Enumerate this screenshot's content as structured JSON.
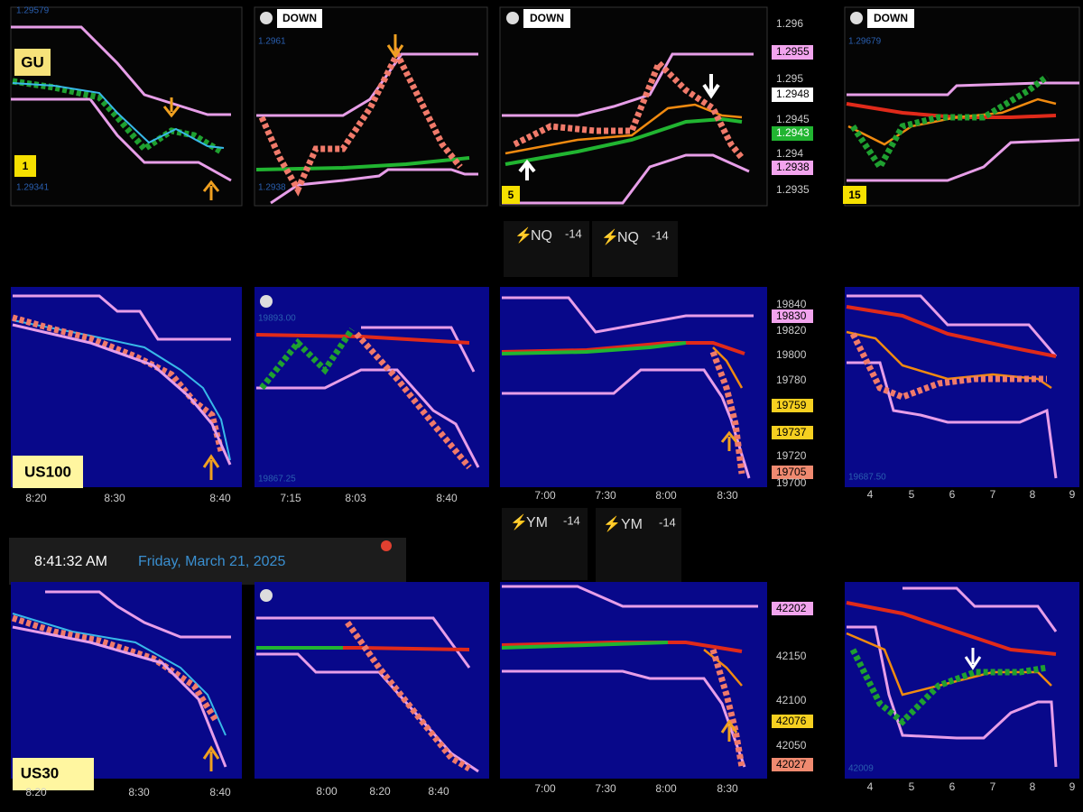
{
  "row1": {
    "panels": [
      {
        "symbol": "GU",
        "timeframe": "1",
        "high": "1.29579",
        "low": "1.29341"
      },
      {
        "badge": "DOWN",
        "high": "1.2961",
        "low": "1.2938"
      },
      {
        "badge": "DOWN",
        "timeframe": "5",
        "price_axis": [
          "1.296",
          "1.2955",
          "1.295",
          "1.2948",
          "1.2945",
          "1.2943",
          "1.294",
          "1.2938",
          "1.2935"
        ]
      },
      {
        "badge": "DOWN",
        "timeframe": "15",
        "high": "1.29679"
      }
    ]
  },
  "nq_tabs": [
    {
      "symbol": "NQ",
      "change": "-14"
    },
    {
      "symbol": "NQ",
      "change": "-14"
    }
  ],
  "row2": {
    "panels": [
      {
        "symbol": "US100",
        "time_axis": [
          "8:20",
          "8:30",
          "8:40"
        ]
      },
      {
        "high": "19893.00",
        "low": "19867.25",
        "time_axis": [
          "7:15",
          "8:03",
          "8:40"
        ]
      },
      {
        "price_axis": [
          "19840",
          "19830",
          "19820",
          "19800",
          "19780",
          "19759",
          "19737",
          "19720",
          "19705",
          "19700"
        ],
        "time_axis": [
          "7:00",
          "7:30",
          "8:00",
          "8:30"
        ]
      },
      {
        "low": "19687.50",
        "time_axis": [
          "4",
          "5",
          "6",
          "7",
          "8",
          "9"
        ]
      }
    ]
  },
  "ym_tabs": [
    {
      "symbol": "YM",
      "change": "-14"
    },
    {
      "symbol": "YM",
      "change": "-14"
    }
  ],
  "clock": {
    "time": "8:41:32 AM",
    "date": "Friday, March 21, 2025"
  },
  "row3": {
    "panels": [
      {
        "symbol": "US30",
        "time_axis": [
          "8:20",
          "8:30",
          "8:40"
        ]
      },
      {
        "time_axis": [
          "8:00",
          "8:20",
          "8:40"
        ]
      },
      {
        "price_axis": [
          "42202",
          "42150",
          "42100",
          "42076",
          "42050",
          "42027"
        ],
        "time_axis": [
          "7:00",
          "7:30",
          "8:00",
          "8:30"
        ]
      },
      {
        "low": "42009",
        "time_axis": [
          "4",
          "5",
          "6",
          "7",
          "8",
          "9"
        ]
      }
    ]
  }
}
